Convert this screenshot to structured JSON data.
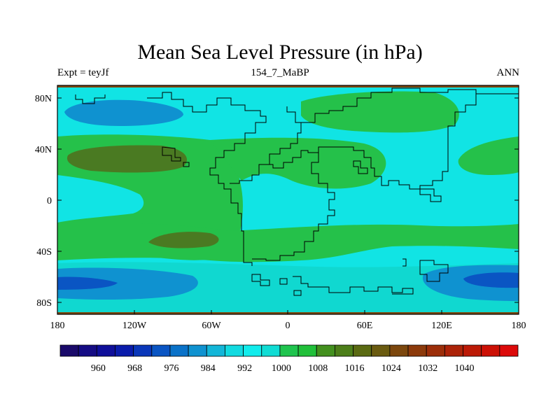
{
  "title": "Mean Sea Level Pressure (in hPa)",
  "subtitle": {
    "left": "Expt = teyJf",
    "center": "154_7_MaBP",
    "right": "ANN"
  },
  "axes": {
    "x_ticks": [
      "180",
      "120W",
      "60W",
      "0",
      "60E",
      "120E",
      "180"
    ],
    "y_ticks": [
      "80N",
      "40N",
      "0",
      "40S",
      "80S"
    ]
  },
  "colorbar": {
    "labels": [
      "960",
      "968",
      "976",
      "984",
      "992",
      "1000",
      "1008",
      "1016",
      "1024",
      "1032",
      "1040"
    ],
    "colors": [
      "#1a0a6a",
      "#150c84",
      "#0f0f9a",
      "#0a1cab",
      "#0a37b9",
      "#0a55c3",
      "#0a72c8",
      "#0f92d0",
      "#13b6d8",
      "#12dae0",
      "#11ecec",
      "#10dcd4",
      "#1fc44e",
      "#21c03a",
      "#43901e",
      "#4c7e19",
      "#5a6a12",
      "#6a5b10",
      "#7c470d",
      "#8c3a0b",
      "#9c2e09",
      "#ac2308",
      "#bc1a06",
      "#cc1005",
      "#dc0a0a"
    ]
  },
  "palette": {
    "ocean_low": "#10d8d0",
    "cyan_mid": "#11e4e4",
    "green": "#25c14a",
    "dark_green": "#4a7a22",
    "blue_mid": "#0f92d0",
    "blue_deep": "#0a55c3",
    "border_brown": "#7c470d"
  }
}
